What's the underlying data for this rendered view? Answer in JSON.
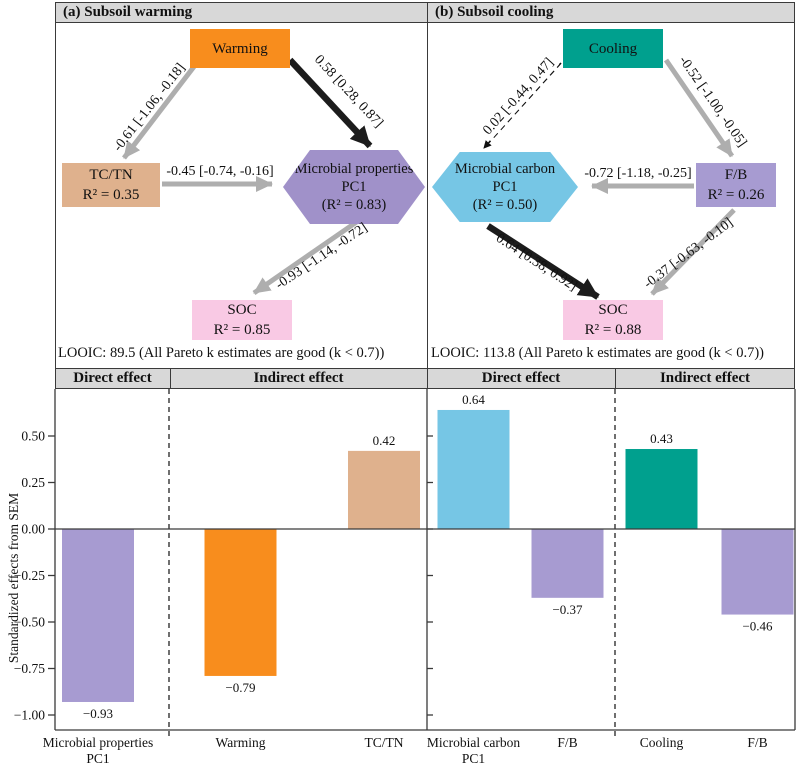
{
  "colors": {
    "orange": "#F88D1D",
    "tan": "#DFB18D",
    "purple": "#A79BD1",
    "pink": "#F9C9E4",
    "teal": "#00A08E",
    "blue": "#76C6E5",
    "arrow_gray": "#AEAEAE",
    "arrow_black": "#1C1C1C",
    "header_gray": "#D8D8D8"
  },
  "panel_a": {
    "header": "(a) Subsoil warming",
    "nodes": {
      "warming": {
        "label": "Warming"
      },
      "tctn": {
        "label": "TC/TN",
        "r2": "R² = 0.35"
      },
      "microbial": {
        "line1": "Microbial properties",
        "line2": "PC1",
        "r2": "(R² = 0.83)"
      },
      "soc": {
        "label": "SOC",
        "r2": "R² = 0.85"
      }
    },
    "paths": {
      "warming_tctn": "-0.61 [-1.06, -0.18]",
      "warming_microbial": "0.58 [0.28, 0.87]",
      "tctn_microbial": "-0.45 [-0.74, -0.16]",
      "microbial_soc": "-0.93 [-1.14, -0.72]"
    },
    "looic": "LOOIC: 89.5 (All Pareto k estimates are good (k < 0.7))"
  },
  "panel_b": {
    "header": "(b) Subsoil cooling",
    "nodes": {
      "cooling": {
        "label": "Cooling"
      },
      "fb": {
        "label": "F/B",
        "r2": "R² = 0.26"
      },
      "microbial": {
        "line1": "Microbial carbon",
        "line2": "PC1",
        "r2": "(R² = 0.50)"
      },
      "soc": {
        "label": "SOC",
        "r2": "R² = 0.88"
      }
    },
    "paths": {
      "cooling_microbial": "0.02 [-0.44, 0.47]",
      "cooling_fb": "-0.52 [-1.00, -0.05]",
      "fb_microbial": "-0.72 [-1.18, -0.25]",
      "microbial_soc": "0.64 [0.38, 0.92]",
      "fb_soc": "-0.37 [-0.63, -0.10]"
    },
    "looic": "LOOIC: 113.8 (All Pareto k estimates are good (k < 0.7))"
  },
  "chart_data": {
    "type": "bar",
    "ylabel": "Standardized effects from SEM",
    "ylim": [
      -1.08,
      0.75
    ],
    "grid": false,
    "yticks": [
      0.5,
      0.25,
      0,
      -0.25,
      -0.5,
      -0.75,
      -1
    ],
    "ytick_labels": [
      "0.50",
      "0.25",
      "0.00",
      "−0.25",
      "−0.50",
      "−0.75",
      "−1.00"
    ],
    "sections": [
      {
        "panel": "a",
        "header": "Direct effect",
        "bars": [
          {
            "category": "Microbial properties PC1",
            "category_lines": [
              "Microbial properties",
              "PC1"
            ],
            "value": -0.93,
            "label": "−0.93",
            "color": "purple"
          }
        ]
      },
      {
        "panel": "a",
        "header": "Indirect effect",
        "bars": [
          {
            "category": "Warming",
            "category_lines": [
              "Warming"
            ],
            "value": -0.79,
            "label": "−0.79",
            "color": "orange"
          },
          {
            "category": "TC/TN",
            "category_lines": [
              "TC/TN"
            ],
            "value": 0.42,
            "label": "0.42",
            "color": "tan"
          }
        ]
      },
      {
        "panel": "b",
        "header": "Direct effect",
        "bars": [
          {
            "category": "Microbial carbon PC1",
            "category_lines": [
              "Microbial carbon",
              "PC1"
            ],
            "value": 0.64,
            "label": "0.64",
            "color": "blue"
          },
          {
            "category": "F/B",
            "category_lines": [
              "F/B"
            ],
            "value": -0.37,
            "label": "−0.37",
            "color": "purple"
          }
        ]
      },
      {
        "panel": "b",
        "header": "Indirect effect",
        "bars": [
          {
            "category": "Cooling",
            "category_lines": [
              "Cooling"
            ],
            "value": 0.43,
            "label": "0.43",
            "color": "teal"
          },
          {
            "category": "F/B",
            "category_lines": [
              "F/B"
            ],
            "value": -0.46,
            "label": "−0.46",
            "color": "purple"
          }
        ]
      }
    ]
  }
}
